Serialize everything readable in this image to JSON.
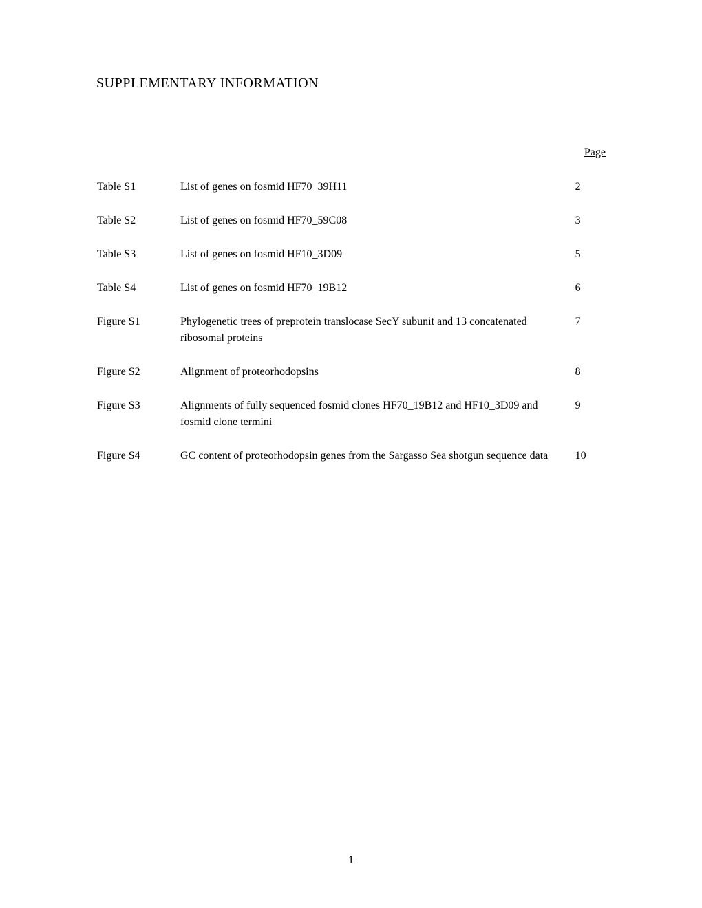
{
  "title": "SUPPLEMENTARY INFORMATION",
  "page_column_header": "Page",
  "toc_entries": [
    {
      "label": "Table S1",
      "description": "List of genes on fosmid HF70_39H11",
      "page": "2"
    },
    {
      "label": "Table S2",
      "description": "List of genes on fosmid HF70_59C08",
      "page": "3"
    },
    {
      "label": "Table S3",
      "description": "List of genes on fosmid HF10_3D09",
      "page": "5"
    },
    {
      "label": "Table S4",
      "description": "List of genes on fosmid HF70_19B12",
      "page": "6"
    },
    {
      "label": "Figure S1",
      "description": "Phylogenetic trees of preprotein translocase SecY subunit and 13 concatenated ribosomal proteins",
      "page": "7"
    },
    {
      "label": "Figure S2",
      "description": "Alignment of proteorhodopsins",
      "page": "8"
    },
    {
      "label": "Figure S3",
      "description": "Alignments of fully sequenced fosmid clones HF70_19B12 and HF10_3D09 and fosmid clone termini",
      "page": "9"
    },
    {
      "label": "Figure S4",
      "description": "GC content of proteorhodopsin genes from the Sargasso Sea shotgun sequence data",
      "page": "10"
    }
  ],
  "page_number": "1",
  "colors": {
    "background": "#ffffff",
    "text": "#000000"
  },
  "typography": {
    "body_font": "Times New Roman",
    "body_size_pt": 12,
    "title_size_pt": 15
  }
}
